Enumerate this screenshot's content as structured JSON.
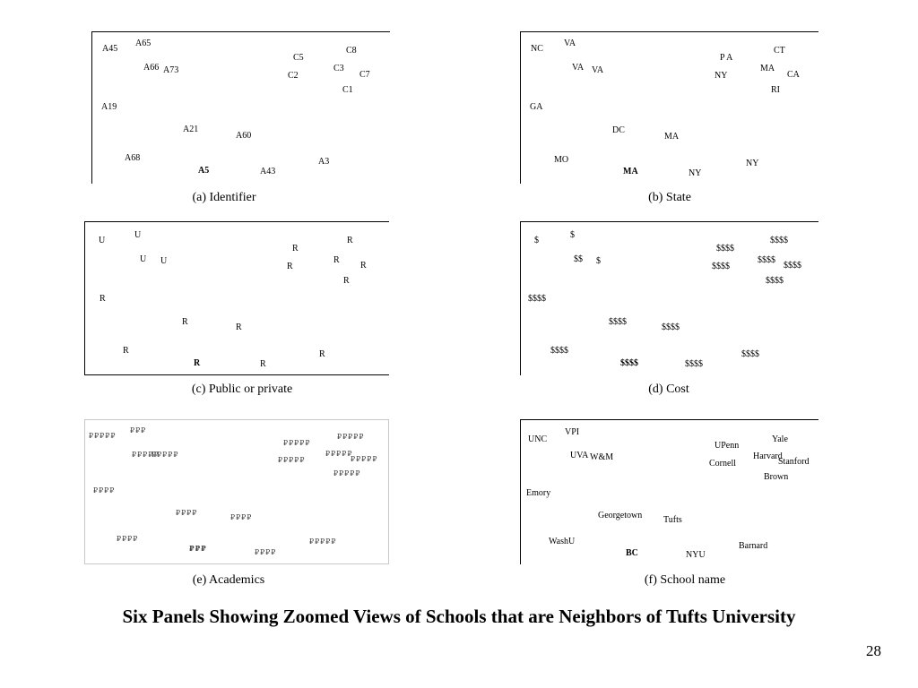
{
  "title": "Six Panels Showing Zoomed Views of Schools that are Neighbors of Tufts University",
  "page_number": "28",
  "panels": [
    {
      "caption": "(a) Identifier",
      "labels": [
        {
          "t": "A45"
        },
        {
          "t": "A65"
        },
        {
          "t": "C5"
        },
        {
          "t": "C8"
        },
        {
          "t": "A66"
        },
        {
          "t": "A73"
        },
        {
          "t": "C3"
        },
        {
          "t": "C2"
        },
        {
          "t": "C7"
        },
        {
          "t": "C1"
        },
        {
          "t": "A19"
        },
        {
          "t": "A21"
        },
        {
          "t": "A60"
        },
        {
          "t": "A68"
        },
        {
          "t": "A3"
        },
        {
          "t": "A5",
          "b": true
        },
        {
          "t": "A43"
        }
      ]
    },
    {
      "caption": "(b) State",
      "labels": [
        {
          "t": "NC"
        },
        {
          "t": "VA"
        },
        {
          "t": "CT"
        },
        {
          "t": "P A"
        },
        {
          "t": "VA"
        },
        {
          "t": "VA"
        },
        {
          "t": "MA"
        },
        {
          "t": "CA"
        },
        {
          "t": "NY"
        },
        {
          "t": "RI"
        },
        {
          "t": "GA"
        },
        {
          "t": "DC"
        },
        {
          "t": "MA"
        },
        {
          "t": "MO"
        },
        {
          "t": "NY"
        },
        {
          "t": "MA",
          "b": true
        },
        {
          "t": "NY"
        }
      ]
    },
    {
      "caption": "(c) Public or  private",
      "labels": [
        {
          "t": "U"
        },
        {
          "t": "U"
        },
        {
          "t": "R"
        },
        {
          "t": "R"
        },
        {
          "t": "U"
        },
        {
          "t": "U"
        },
        {
          "t": "R"
        },
        {
          "t": "R"
        },
        {
          "t": "R"
        },
        {
          "t": "R"
        },
        {
          "t": "R"
        },
        {
          "t": "R"
        },
        {
          "t": "R"
        },
        {
          "t": "R"
        },
        {
          "t": "R"
        },
        {
          "t": "R",
          "b": true
        },
        {
          "t": "R"
        }
      ]
    },
    {
      "caption": "(d) Cost",
      "labels": [
        {
          "t": "$"
        },
        {
          "t": "$"
        },
        {
          "t": "$$$$"
        },
        {
          "t": "$$$$"
        },
        {
          "t": "$$"
        },
        {
          "t": "$"
        },
        {
          "t": "$$$$"
        },
        {
          "t": "$$$$"
        },
        {
          "t": "$$$$"
        },
        {
          "t": "$$$$"
        },
        {
          "t": "$$$$"
        },
        {
          "t": "$$$$"
        },
        {
          "t": "$$$$"
        },
        {
          "t": "$$$$"
        },
        {
          "t": "$$$$"
        },
        {
          "t": "$$$$",
          "b": true
        },
        {
          "t": "$$$$"
        }
      ]
    },
    {
      "caption": "(e) Academics",
      "labels": [
        {
          "t": "₽₽₽₽₽"
        },
        {
          "t": "₽₽₽"
        },
        {
          "t": "₽₽₽₽₽"
        },
        {
          "t": "₽₽₽₽₽"
        },
        {
          "t": "₽₽₽₽₽"
        },
        {
          "t": "₽₽₽₽₽"
        },
        {
          "t": "₽₽₽₽₽"
        },
        {
          "t": "₽₽₽₽₽"
        },
        {
          "t": "₽₽₽₽₽"
        },
        {
          "t": "₽₽₽₽₽"
        },
        {
          "t": "₽₽₽₽"
        },
        {
          "t": "₽₽₽₽"
        },
        {
          "t": "₽₽₽₽"
        },
        {
          "t": "₽₽₽₽"
        },
        {
          "t": "₽₽₽₽₽"
        },
        {
          "t": "₽₽₽",
          "b": true
        },
        {
          "t": "₽₽₽₽"
        }
      ]
    },
    {
      "caption": "(f) School name",
      "labels": [
        {
          "t": "UNC"
        },
        {
          "t": "VPI"
        },
        {
          "t": "Yale"
        },
        {
          "t": "UPenn"
        },
        {
          "t": "UVA"
        },
        {
          "t": "W&M"
        },
        {
          "t": "Harvard"
        },
        {
          "t": "Stanford"
        },
        {
          "t": "Cornell"
        },
        {
          "t": "Brown"
        },
        {
          "t": "Emory"
        },
        {
          "t": "Georgetown"
        },
        {
          "t": "Tufts"
        },
        {
          "t": "WashU"
        },
        {
          "t": "Barnard"
        },
        {
          "t": "BC",
          "b": true
        },
        {
          "t": "NYU"
        }
      ]
    }
  ]
}
